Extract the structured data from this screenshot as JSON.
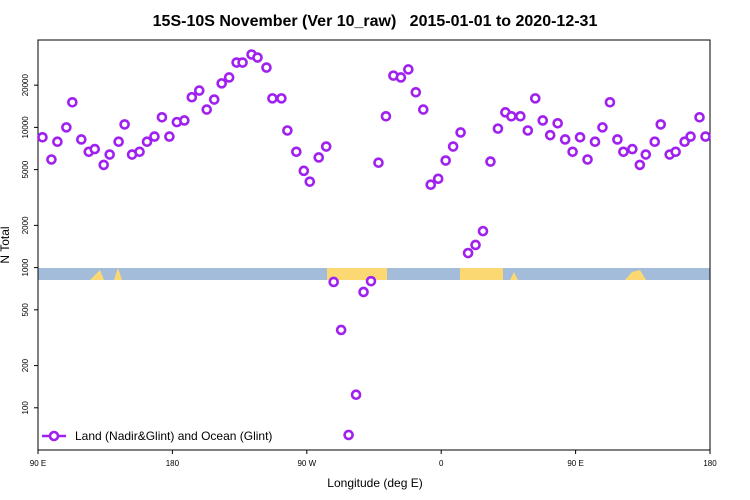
{
  "chart_data": {
    "type": "scatter",
    "title": "15S-10S November (Ver 10_raw)   2015-01-01 to 2020-12-31",
    "x_label": "Longitude (deg E)",
    "y_label": "N Total",
    "y_scale": "log",
    "legend": "lower left",
    "xlim": [
      90,
      540
    ],
    "ylim": [
      50,
      42000
    ],
    "xticks": [
      {
        "value": 90,
        "label": "90 E"
      },
      180,
      {
        "value": 270,
        "label": "90 W"
      },
      {
        "value": 360,
        "label": "0"
      },
      {
        "value": 450,
        "label": "90 E"
      },
      {
        "value": 540,
        "label": "180"
      }
    ],
    "yticks": [
      100,
      200,
      500,
      1000,
      2000,
      5000,
      10000,
      20000
    ],
    "series": [
      {
        "name": "Land (Nadir&Glint) and Ocean (Glint)",
        "color": "#a020f0",
        "x": [
          93,
          99,
          103,
          109,
          113,
          119,
          124,
          128,
          134,
          138,
          144,
          148,
          153,
          158,
          163,
          168,
          173,
          178,
          183,
          188,
          193,
          198,
          203,
          208,
          213,
          218,
          223,
          227,
          233,
          237,
          243,
          247,
          253,
          257,
          263,
          268,
          272,
          278,
          283,
          288,
          293,
          298,
          303,
          308,
          313,
          318,
          323,
          328,
          333,
          338,
          343,
          348,
          353,
          358,
          363,
          368,
          373,
          378,
          383,
          388,
          393,
          398,
          403,
          407,
          413,
          418,
          423,
          428,
          433,
          438,
          443,
          448,
          453,
          458,
          463,
          468,
          473,
          478,
          482,
          488,
          493,
          497,
          503,
          507,
          513,
          517,
          523,
          527,
          533,
          537
        ],
        "values": [
          8500,
          5900,
          7900,
          10000,
          15100,
          8200,
          6700,
          7000,
          5400,
          6400,
          7900,
          10500,
          6400,
          6700,
          7900,
          8600,
          11800,
          8600,
          10900,
          11200,
          16400,
          18300,
          13400,
          15800,
          20600,
          22700,
          29000,
          29000,
          33100,
          31500,
          26700,
          16100,
          16100,
          9500,
          6700,
          4900,
          4100,
          6100,
          7300,
          790,
          359,
          64,
          124,
          670,
          800,
          5600,
          12000,
          23400,
          22700,
          25900,
          17800,
          13400,
          3900,
          4300,
          5800,
          7300,
          9200,
          1270,
          1450,
          1820,
          5700,
          9800,
          12800,
          12000,
          12000,
          9500,
          16100,
          11200,
          8800,
          10700,
          8200,
          6700,
          8500,
          5900,
          7900,
          10000,
          15100,
          8200,
          6700,
          7000,
          5400,
          6400,
          7900,
          10500,
          6400,
          6700,
          7900,
          8600,
          11800,
          8600
        ]
      }
    ]
  }
}
